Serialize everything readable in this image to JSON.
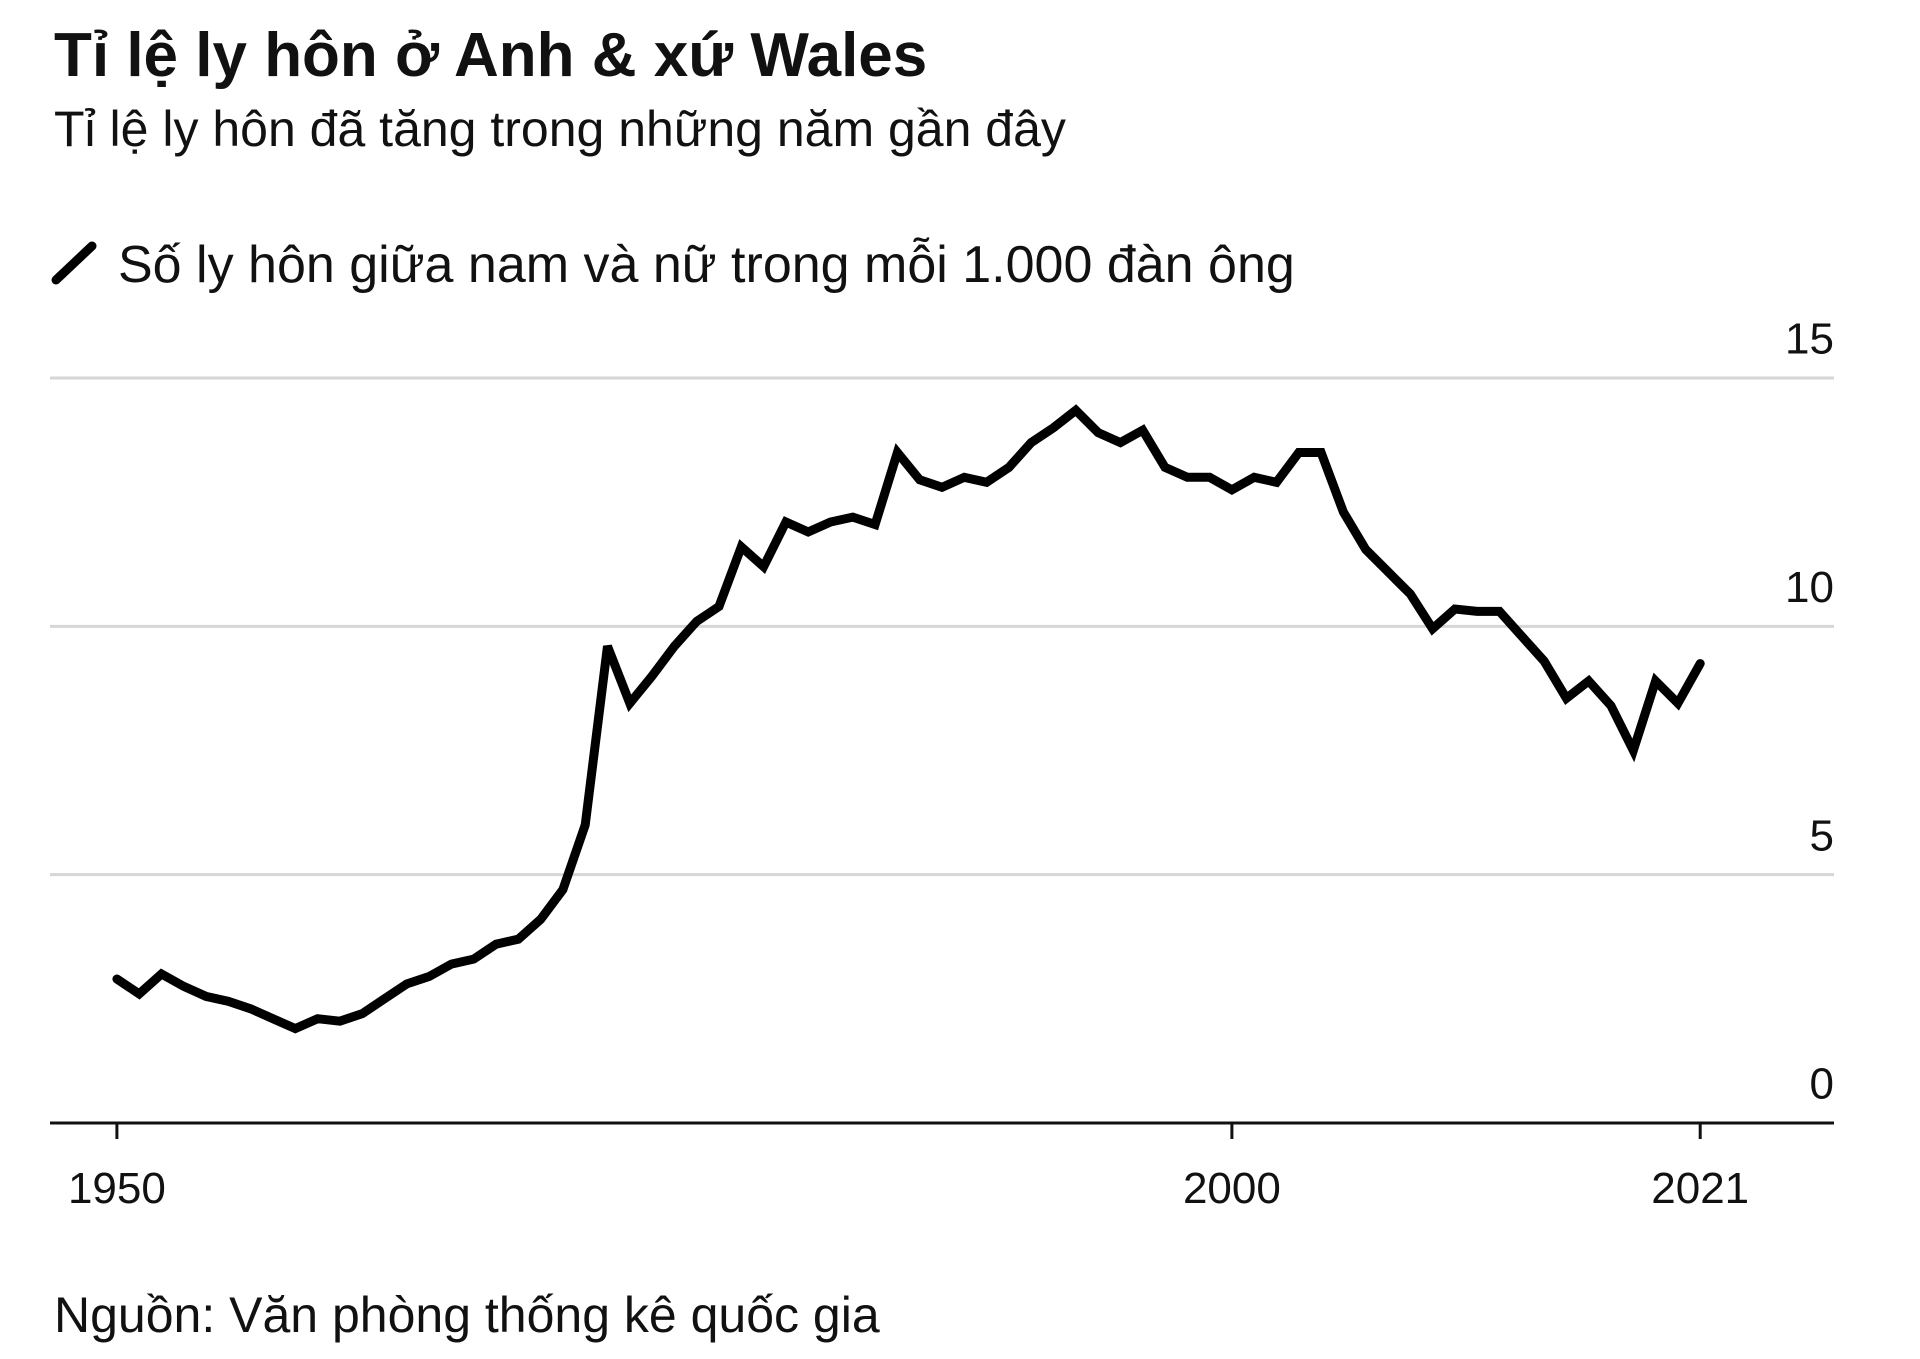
{
  "chart_data": {
    "type": "line",
    "title": "Tỉ lệ ly hôn ở Anh & xứ Wales",
    "subtitle": "Tỉ lệ ly hôn đã tăng trong những năm gần đây",
    "source": "Nguồn: Văn phòng thống kê quốc gia",
    "x": [
      1950,
      1951,
      1952,
      1953,
      1954,
      1955,
      1956,
      1957,
      1958,
      1959,
      1960,
      1961,
      1962,
      1963,
      1964,
      1965,
      1966,
      1967,
      1968,
      1969,
      1970,
      1971,
      1972,
      1973,
      1974,
      1975,
      1976,
      1977,
      1978,
      1979,
      1980,
      1981,
      1982,
      1983,
      1984,
      1985,
      1986,
      1987,
      1988,
      1989,
      1990,
      1991,
      1992,
      1993,
      1994,
      1995,
      1996,
      1997,
      1998,
      1999,
      2000,
      2001,
      2002,
      2003,
      2004,
      2005,
      2006,
      2007,
      2008,
      2009,
      2010,
      2011,
      2012,
      2013,
      2014,
      2015,
      2016,
      2017,
      2018,
      2019,
      2020,
      2021
    ],
    "series": [
      {
        "name": "Số ly hôn giữa nam và nữ trong mỗi 1.000 đàn ông",
        "color": "#000000",
        "values": [
          2.9,
          2.6,
          3.0,
          2.75,
          2.55,
          2.45,
          2.3,
          2.1,
          1.9,
          2.1,
          2.05,
          2.2,
          2.5,
          2.8,
          2.95,
          3.2,
          3.3,
          3.6,
          3.7,
          4.1,
          4.7,
          6.0,
          9.6,
          8.45,
          9.0,
          9.6,
          10.1,
          10.4,
          11.6,
          11.2,
          12.1,
          11.9,
          12.1,
          12.2,
          12.05,
          13.5,
          12.95,
          12.8,
          13.0,
          12.9,
          13.2,
          13.7,
          14.0,
          14.35,
          13.9,
          13.7,
          13.95,
          13.2,
          13.0,
          13.0,
          12.75,
          13.0,
          12.9,
          13.5,
          13.5,
          12.3,
          11.55,
          11.1,
          10.65,
          9.95,
          10.35,
          10.3,
          10.3,
          9.8,
          9.3,
          8.55,
          8.9,
          8.4,
          7.5,
          8.9,
          8.45,
          9.25
        ]
      }
    ],
    "xlim": [
      1947,
      2027
    ],
    "xticks": [
      1950,
      2000,
      2021
    ],
    "ylim": [
      0,
      15
    ],
    "yticks": [
      0,
      5,
      10,
      15
    ],
    "grid": true
  }
}
